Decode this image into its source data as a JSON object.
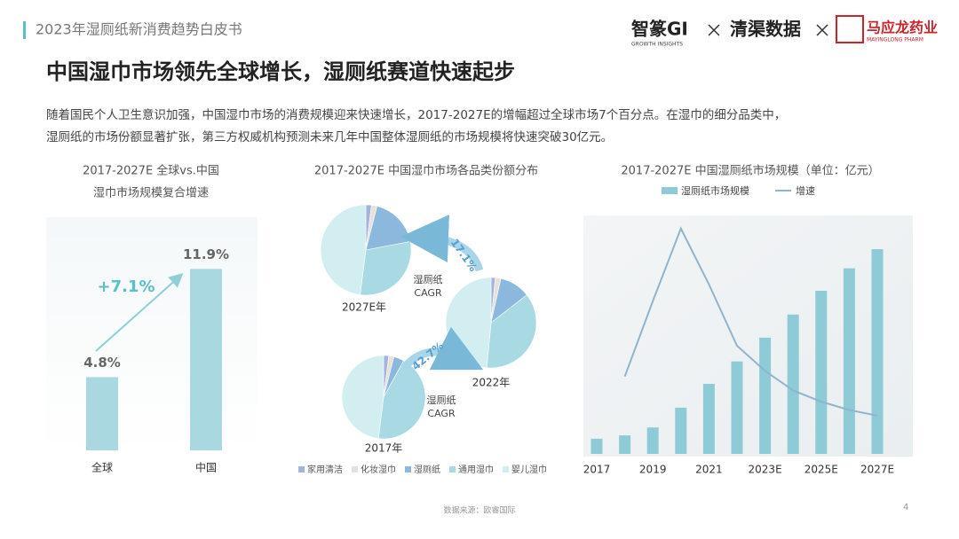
{
  "header": {
    "title": "2023年湿厕纸新消费趋势白皮书",
    "logos": {
      "zhizhuan": "智篆GI",
      "zhizhuan_sub": "GROWTH INSIGHTS",
      "qingqu": "清渠数据",
      "mayinglong": "马应龙药业",
      "mayinglong_sub": "MAYINGLONG PHARM"
    }
  },
  "title": "中国湿巾市场领先全球增长，湿厕纸赛道快速起步",
  "body": [
    "随着国民个人卫生意识加强，中国湿巾市场的消费规模迎来快速增长，2017-2027E的增幅超过全球市场7个百分点。在湿巾的细分品类中，",
    "湿厕纸的市场份额显著扩张，第三方权威机构预测未来几年中国整体湿厕纸的市场规模将快速突破30亿元。"
  ],
  "chart_data": [
    {
      "type": "bar",
      "title": [
        "2017-2027E 全球vs.中国",
        "湿巾市场规模复合增速"
      ],
      "categories": [
        "全球",
        "中国"
      ],
      "values": [
        4.8,
        11.9
      ],
      "value_labels": [
        "4.8%",
        "11.9%"
      ],
      "color": "#a9d8e0",
      "annotation": "+7.1%"
    },
    {
      "type": "pie",
      "title": "2017-2027E 中国湿巾市场各品类份额分布",
      "categories": [
        "家用清洁",
        "化妆湿巾",
        "湿厕纸",
        "通用湿巾",
        "婴儿湿巾"
      ],
      "colors": [
        "#a3b3dd",
        "#e6e2da",
        "#8db8de",
        "#a9d9e2",
        "#d3eef1"
      ],
      "pies": [
        {
          "name": "2027E年",
          "values": [
            2,
            2,
            18,
            30,
            48
          ]
        },
        {
          "name": "2022年",
          "values": [
            1.5,
            2,
            11,
            37,
            48.5
          ]
        },
        {
          "name": "2017年",
          "values": [
            2,
            2,
            4,
            44,
            48
          ]
        }
      ],
      "annotations": [
        {
          "text": "17.1%",
          "label": [
            "湿厕纸",
            "CAGR"
          ]
        },
        {
          "text": "42.7%",
          "label": [
            "湿厕纸",
            "CAGR"
          ]
        }
      ]
    },
    {
      "type": "bar-line",
      "title": "2017-2027E 中国湿厕纸市场规模（单位：亿元）",
      "categories": [
        "2017",
        null,
        "2019",
        null,
        "2021",
        null,
        "2023E",
        null,
        "2025E",
        null,
        "2027E"
      ],
      "series": [
        {
          "name": "湿厕纸市场规模",
          "color": "#8ecbd6",
          "values": [
            2.3,
            2.8,
            4.0,
            7.0,
            10.6,
            14.0,
            17.6,
            21.1,
            24.7,
            28.1,
            31.0
          ]
        },
        {
          "name": "增速",
          "color": "#8fb4cc",
          "values": [
            null,
            22,
            49,
            75,
            55,
            33,
            24,
            17,
            13,
            10,
            8
          ]
        }
      ]
    }
  ],
  "source": "数据来源：欧睿国际",
  "page_number": "4"
}
